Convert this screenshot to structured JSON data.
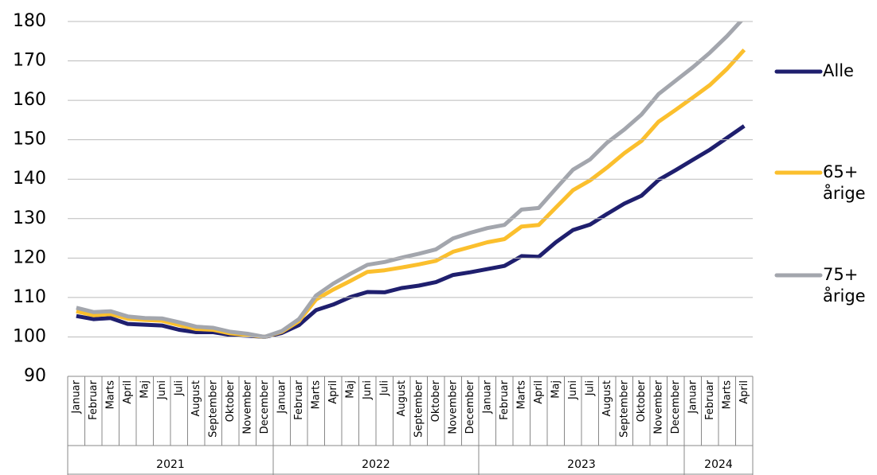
{
  "chart_data": {
    "type": "line",
    "groups": [
      {
        "name": "2021",
        "categories": [
          "Januar",
          "Februar",
          "Marts",
          "April",
          "Maj",
          "Juni",
          "Juli",
          "August",
          "September",
          "Oktober",
          "November",
          "December"
        ]
      },
      {
        "name": "2022",
        "categories": [
          "Januar",
          "Februar",
          "Marts",
          "April",
          "Maj",
          "Juni",
          "Juli",
          "August",
          "September",
          "Oktober",
          "November",
          "December"
        ]
      },
      {
        "name": "2023",
        "categories": [
          "Januar",
          "Februar",
          "Marts",
          "April",
          "Maj",
          "Juni",
          "Juli",
          "August",
          "September",
          "Oktober",
          "November",
          "December"
        ]
      },
      {
        "name": "2024",
        "categories": [
          "Januar",
          "Februar",
          "Marts",
          "April"
        ]
      }
    ],
    "series": [
      {
        "name": "Alle",
        "color": "#1f1f6e",
        "values": [
          105.3,
          104.5,
          104.8,
          103.3,
          103.1,
          102.9,
          101.8,
          101.2,
          101.2,
          100.5,
          100.3,
          100.0,
          101.0,
          103.0,
          106.8,
          108.2,
          110.1,
          111.4,
          111.3,
          112.4,
          113.0,
          113.9,
          115.7,
          116.4,
          117.2,
          118.0,
          120.5,
          120.3,
          124.0,
          127.1,
          128.5,
          131.2,
          133.8,
          135.8,
          139.8,
          142.3,
          144.9,
          147.5,
          150.5,
          153.5
        ]
      },
      {
        "name": "65+ årige",
        "color": "#fbbf2d",
        "values": [
          106.5,
          105.5,
          105.8,
          104.6,
          104.3,
          104.1,
          103.0,
          102.0,
          101.8,
          100.9,
          100.5,
          100.0,
          101.3,
          104.0,
          109.5,
          112.0,
          114.2,
          116.5,
          116.9,
          117.6,
          118.4,
          119.3,
          121.6,
          122.8,
          124.0,
          124.8,
          128.0,
          128.4,
          132.8,
          137.2,
          139.7,
          143.0,
          146.6,
          149.7,
          154.6,
          157.6,
          160.7,
          163.9,
          168.0,
          172.8
        ]
      },
      {
        "name": "75+ årige",
        "color": "#a3a6ad",
        "values": [
          107.4,
          106.3,
          106.5,
          105.2,
          104.8,
          104.7,
          103.7,
          102.6,
          102.3,
          101.3,
          100.8,
          100.0,
          101.5,
          104.5,
          110.5,
          113.5,
          116.0,
          118.3,
          119.0,
          120.1,
          121.1,
          122.2,
          125.0,
          126.4,
          127.6,
          128.4,
          132.3,
          132.7,
          137.6,
          142.4,
          145.0,
          149.3,
          152.6,
          156.4,
          161.6,
          165.0,
          168.4,
          172.1,
          176.3,
          181.0
        ]
      }
    ],
    "ylim": [
      90,
      180
    ],
    "yticks": [
      90,
      100,
      110,
      120,
      130,
      140,
      150,
      160,
      170,
      180
    ],
    "grid": true,
    "legend": "right"
  }
}
